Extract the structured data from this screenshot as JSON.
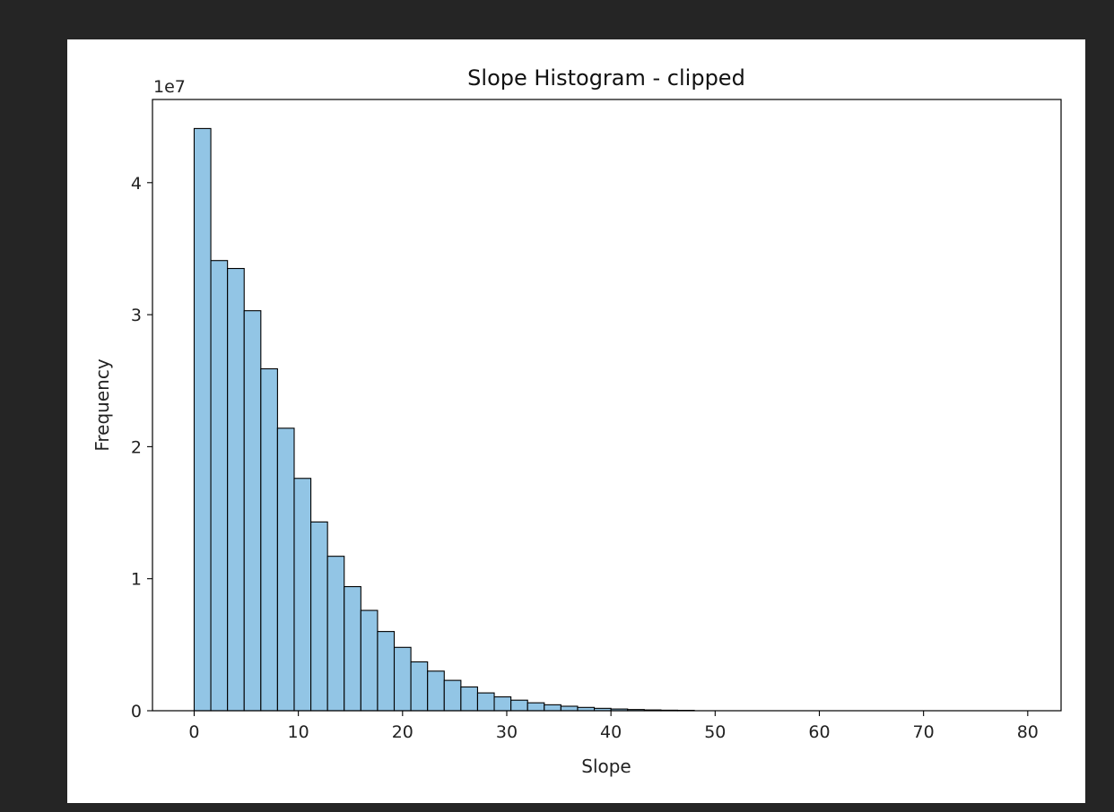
{
  "chart_data": {
    "type": "bar",
    "title": "Slope Histogram - clipped",
    "xlabel": "Slope",
    "ylabel": "Frequency",
    "y_offset_text": "1e7",
    "y_scale": 10000000,
    "xlim": [
      -4,
      83.2
    ],
    "ylim": [
      0,
      4.63
    ],
    "xticks": [
      0,
      10,
      20,
      30,
      40,
      50,
      60,
      70,
      80
    ],
    "xtick_labels": [
      "0",
      "10",
      "20",
      "30",
      "40",
      "50",
      "60",
      "70",
      "80"
    ],
    "yticks": [
      0,
      1,
      2,
      3,
      4
    ],
    "ytick_labels": [
      "0",
      "1",
      "2",
      "3",
      "4"
    ],
    "bin_width": 1.6,
    "bin_start": 0,
    "values": [
      4.41,
      3.41,
      3.35,
      3.03,
      2.59,
      2.14,
      1.76,
      1.43,
      1.17,
      0.94,
      0.76,
      0.6,
      0.48,
      0.37,
      0.3,
      0.23,
      0.18,
      0.135,
      0.105,
      0.08,
      0.06,
      0.045,
      0.034,
      0.025,
      0.018,
      0.013,
      0.009,
      0.006,
      0.004,
      0.003
    ],
    "bar_color": "#92c5e5",
    "edge_color": "#000000",
    "grid": false,
    "legend": "none"
  }
}
